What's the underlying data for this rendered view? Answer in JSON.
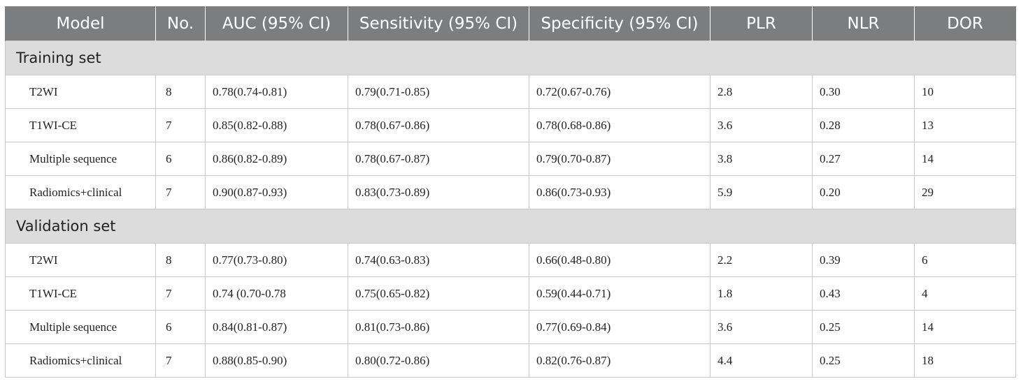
{
  "headers": [
    "Model",
    "No.",
    "AUC (95% CI)",
    "Sensitivity (95% CI)",
    "Specificity (95% CI)",
    "PLR",
    "NLR",
    "DOR"
  ],
  "sections": [
    {
      "title": "Training set",
      "rows": [
        [
          "T2WI",
          "8",
          "0.78(0.74-0.81)",
          "0.79(0.71-0.85)",
          "0.72(0.67-0.76)",
          "2.8",
          "0.30",
          "10"
        ],
        [
          "T1WI-CE",
          "7",
          "0.85(0.82-0.88)",
          "0.78(0.67-0.86)",
          "0.78(0.68-0.86)",
          "3.6",
          "0.28",
          "13"
        ],
        [
          "Multiple sequence",
          "6",
          "0.86(0.82-0.89)",
          "0.78(0.67-0.87)",
          "0.79(0.70-0.87)",
          "3.8",
          "0.27",
          "14"
        ],
        [
          "Radiomics+clinical",
          "7",
          "0.90(0.87-0.93)",
          "0.83(0.73-0.89)",
          "0.86(0.73-0.93)",
          "5.9",
          "0.20",
          "29"
        ]
      ]
    },
    {
      "title": "Validation set",
      "rows": [
        [
          "T2WI",
          "8",
          "0.77(0.73-0.80)",
          "0.74(0.63-0.83)",
          "0.66(0.48-0.80)",
          "2.2",
          "0.39",
          "6"
        ],
        [
          "T1WI-CE",
          "7",
          "0.74 (0.70-0.78",
          "0.75(0.65-0.82)",
          "0.59(0.44-0.71)",
          "1.8",
          "0.43",
          "4"
        ],
        [
          "Multiple sequence",
          "6",
          "0.84(0.81-0.87)",
          "0.81(0.73-0.86)",
          "0.77(0.69-0.84)",
          "3.6",
          "0.25",
          "14"
        ],
        [
          "Radiomics+clinical",
          "7",
          "0.88(0.85-0.90)",
          "0.80(0.72-0.86)",
          "0.82(0.76-0.87)",
          "4.4",
          "0.25",
          "18"
        ]
      ]
    }
  ],
  "colors": {
    "header_bg": "#7b7d7f",
    "header_text": "#ffffff",
    "section_bg": "#dcdcdc",
    "border": "#c8c8c8"
  }
}
